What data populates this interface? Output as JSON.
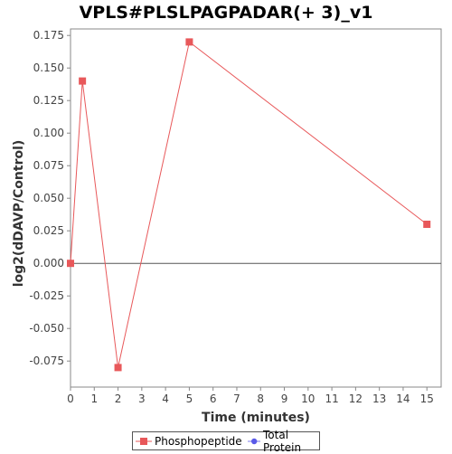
{
  "chart_data": {
    "type": "line",
    "title": "VPLS#PLSLPAGPADAR(+ 3)_v1",
    "xlabel": "Time (minutes)",
    "ylabel": "log2(dDAVP/Control)",
    "xlim": [
      0,
      15.6
    ],
    "ylim": [
      -0.095,
      0.18
    ],
    "x_ticks": [
      0,
      1,
      2,
      3,
      4,
      5,
      6,
      7,
      8,
      9,
      10,
      11,
      12,
      13,
      14,
      15
    ],
    "y_ticks": [
      "-0.075",
      "-0.050",
      "-0.025",
      "0.000",
      "0.025",
      "0.050",
      "0.075",
      "0.100",
      "0.125",
      "0.150",
      "0.175"
    ],
    "zero_line": true,
    "grid": false,
    "legend_position": "bottom",
    "series": [
      {
        "name": "Phosphopeptide",
        "color": "#e8585a",
        "marker": "square",
        "x": [
          0,
          0.5,
          2,
          5,
          15
        ],
        "y": [
          0.0,
          0.14,
          -0.08,
          0.17,
          0.03
        ]
      },
      {
        "name": "Total Protein",
        "color": "#5a5ae8",
        "marker": "circle",
        "x": [],
        "y": []
      }
    ]
  }
}
